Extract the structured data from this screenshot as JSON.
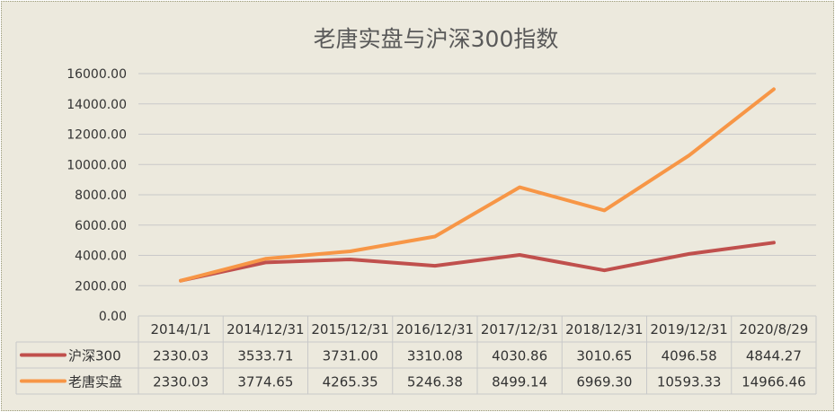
{
  "chart_data": {
    "type": "line",
    "title": "老唐实盘与沪深300指数",
    "categories": [
      "2014/1/1",
      "2014/12/31",
      "2015/12/31",
      "2016/12/31",
      "2017/12/31",
      "2018/12/31",
      "2019/12/31",
      "2020/8/29"
    ],
    "series": [
      {
        "name": "沪深300",
        "color": "#c0504d",
        "values": [
          2330.03,
          3533.71,
          3731.0,
          3310.08,
          4030.86,
          3010.65,
          4096.58,
          4844.27
        ]
      },
      {
        "name": "老唐实盘",
        "color": "#f79646",
        "values": [
          2330.03,
          3774.65,
          4265.35,
          5246.38,
          8499.14,
          6969.3,
          10593.33,
          14966.46
        ]
      }
    ],
    "series_labels": [
      [
        "2330.03",
        "3533.71",
        "3731.00",
        "3310.08",
        "4030.86",
        "3010.65",
        "4096.58",
        "4844.27"
      ],
      [
        "2330.03",
        "3774.65",
        "4265.35",
        "5246.38",
        "8499.14",
        "6969.30",
        "10593.33",
        "14966.46"
      ]
    ],
    "yticks": [
      "0.00",
      "2000.00",
      "4000.00",
      "6000.00",
      "8000.00",
      "10000.00",
      "12000.00",
      "14000.00",
      "16000.00"
    ],
    "ylim": [
      0,
      16000
    ],
    "grid": true,
    "legend": "data-table"
  }
}
